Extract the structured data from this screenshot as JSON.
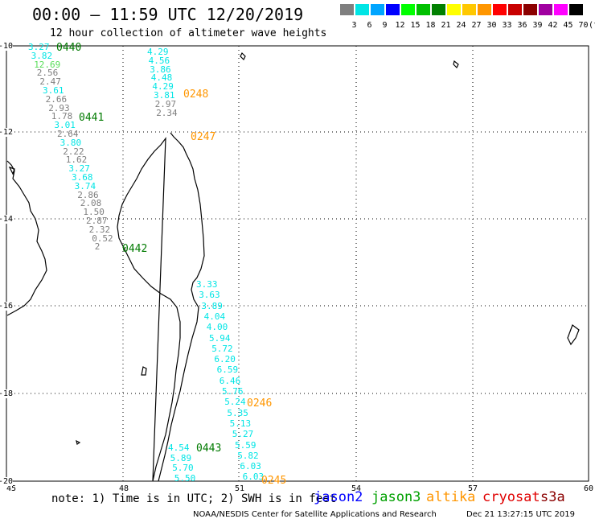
{
  "title": "00:00 – 11:59 UTC 12/20/2019",
  "subtitle": "12 hour collection of altimeter wave heights",
  "scale": {
    "unit": "(ft)",
    "bins": [
      {
        "label": "3",
        "color": "#7f7f7f"
      },
      {
        "label": "6",
        "color": "#00e5e5"
      },
      {
        "label": "9",
        "color": "#00a5ff"
      },
      {
        "label": "12",
        "color": "#0000ff"
      },
      {
        "label": "15",
        "color": "#00ff00"
      },
      {
        "label": "18",
        "color": "#00c000"
      },
      {
        "label": "21",
        "color": "#008000"
      },
      {
        "label": "24",
        "color": "#ffff00"
      },
      {
        "label": "27",
        "color": "#ffc800"
      },
      {
        "label": "30",
        "color": "#ff9600"
      },
      {
        "label": "33",
        "color": "#ff0000"
      },
      {
        "label": "36",
        "color": "#c80000"
      },
      {
        "label": "39",
        "color": "#8b0000"
      },
      {
        "label": "42",
        "color": "#a000a0"
      },
      {
        "label": "45",
        "color": "#ff00ff"
      },
      {
        "label": "70",
        "color": "#000000"
      }
    ]
  },
  "axes": {
    "lon_labels": [
      "45",
      "48",
      "51",
      "54",
      "57",
      "60"
    ],
    "lat_labels": [
      "-10",
      "-12",
      "-14",
      "-16",
      "-18",
      "-20"
    ]
  },
  "colors": {
    "gray": "#7f7f7f",
    "cyan": "#00e5e5",
    "green": "#007a00",
    "orange": "#ff9600"
  },
  "passes": [
    {
      "label": "0440",
      "color": "green"
    },
    {
      "label": "0248",
      "color": "orange"
    },
    {
      "label": "0441",
      "color": "green"
    },
    {
      "label": "0247",
      "color": "orange"
    },
    {
      "label": "0442",
      "color": "green"
    },
    {
      "label": "0246",
      "color": "orange"
    },
    {
      "label": "0443",
      "color": "green"
    },
    {
      "label": "0245",
      "color": "orange"
    }
  ],
  "tracks": {
    "west": [
      {
        "v": "3.27",
        "c": "cyan"
      },
      {
        "v": "3.82",
        "c": "cyan"
      },
      {
        "v": "12.69",
        "c": "lgreen"
      },
      {
        "v": "2.56",
        "c": "gray"
      },
      {
        "v": "2.47",
        "c": "gray"
      },
      {
        "v": "3.61",
        "c": "cyan"
      },
      {
        "v": "2.66",
        "c": "gray"
      },
      {
        "v": "2.93",
        "c": "gray"
      },
      {
        "v": "1.78",
        "c": "gray"
      },
      {
        "v": "3.01",
        "c": "cyan"
      },
      {
        "v": "2.64",
        "c": "gray"
      },
      {
        "v": "3.80",
        "c": "cyan"
      },
      {
        "v": "2.22",
        "c": "gray"
      },
      {
        "v": "1.62",
        "c": "gray"
      },
      {
        "v": "3.27",
        "c": "cyan"
      },
      {
        "v": "3.68",
        "c": "cyan"
      },
      {
        "v": "3.74",
        "c": "cyan"
      },
      {
        "v": "2.86",
        "c": "gray"
      },
      {
        "v": "2.08",
        "c": "gray"
      },
      {
        "v": "1.50",
        "c": "gray"
      },
      {
        "v": "2.87",
        "c": "gray"
      },
      {
        "v": "2.32",
        "c": "gray"
      },
      {
        "v": "0.52",
        "c": "gray"
      },
      {
        "v": "2",
        "c": "gray"
      }
    ],
    "north": [
      {
        "v": "4.29",
        "c": "cyan"
      },
      {
        "v": "4.56",
        "c": "cyan"
      },
      {
        "v": "3.86",
        "c": "cyan"
      },
      {
        "v": "4.48",
        "c": "cyan"
      },
      {
        "v": "4.29",
        "c": "cyan"
      },
      {
        "v": "3.81",
        "c": "cyan"
      },
      {
        "v": "2.97",
        "c": "gray"
      },
      {
        "v": "2.34",
        "c": "gray"
      }
    ],
    "east": [
      {
        "v": "3.33",
        "c": "cyan"
      },
      {
        "v": "3.63",
        "c": "cyan"
      },
      {
        "v": "3.89",
        "c": "cyan"
      },
      {
        "v": "4.04",
        "c": "cyan"
      },
      {
        "v": "4.00",
        "c": "cyan"
      },
      {
        "v": "5.94",
        "c": "cyan"
      },
      {
        "v": "5.72",
        "c": "cyan"
      },
      {
        "v": "6.20",
        "c": "cyan"
      },
      {
        "v": "6.59",
        "c": "cyan"
      },
      {
        "v": "6.46",
        "c": "cyan"
      },
      {
        "v": "5.76",
        "c": "cyan"
      },
      {
        "v": "5.24",
        "c": "cyan"
      },
      {
        "v": "5.35",
        "c": "cyan"
      },
      {
        "v": "5.13",
        "c": "cyan"
      },
      {
        "v": "5.27",
        "c": "cyan"
      },
      {
        "v": "5.59",
        "c": "cyan"
      },
      {
        "v": "5.82",
        "c": "cyan"
      },
      {
        "v": "6.03",
        "c": "cyan"
      },
      {
        "v": "6.03",
        "c": "cyan"
      }
    ],
    "south": [
      {
        "v": "4.54",
        "c": "cyan"
      },
      {
        "v": "5.89",
        "c": "cyan"
      },
      {
        "v": "5.70",
        "c": "cyan"
      },
      {
        "v": "5.50",
        "c": "cyan"
      }
    ]
  },
  "note": "note: 1) Time is in UTC; 2) SWH is in feet",
  "satellites": [
    {
      "name": "jason2",
      "color": "#0000ff"
    },
    {
      "name": "jason3",
      "color": "#00a000"
    },
    {
      "name": "altika",
      "color": "#ff9600"
    },
    {
      "name": "cryosat",
      "color": "#e00000"
    },
    {
      "name": "s3a",
      "color": "#8b0000"
    }
  ],
  "footer": "NOAA/NESDIS Center for Satellite Applications and Research",
  "timestamp": "Dec 21 13:27:15 UTC 2019"
}
